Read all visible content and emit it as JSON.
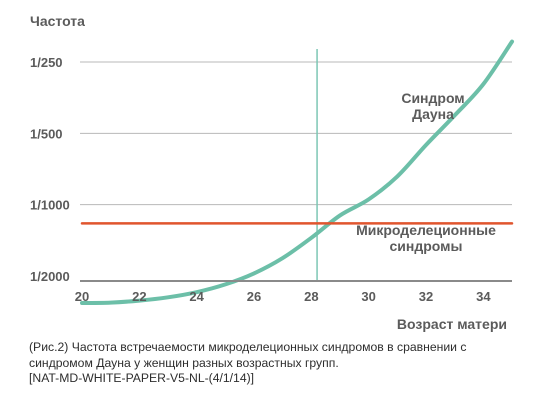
{
  "chart_data": {
    "type": "line",
    "ylabel": "Частота",
    "xlabel": "Возраст матери",
    "x_ticks": [
      "20",
      "22",
      "24",
      "26",
      "28",
      "30",
      "32",
      "34"
    ],
    "y_ticks": [
      "1/250",
      "1/500",
      "1/1000",
      "1/2000"
    ],
    "xlim": [
      20,
      35
    ],
    "grid": true,
    "marker_x": 28.2,
    "series": [
      {
        "name": "Синдром Дауна",
        "color": "#6cbfa8",
        "x": [
          20,
          21,
          22,
          23,
          24,
          25,
          26,
          27,
          28,
          29,
          30,
          31,
          32,
          33,
          34,
          35
        ],
        "y_label_scale": [
          2600,
          2590,
          2540,
          2460,
          2340,
          2170,
          1950,
          1680,
          1380,
          1110,
          950,
          760,
          560,
          420,
          310,
          205
        ]
      },
      {
        "name": "Микроделеционные синдромы",
        "color": "#e0552e",
        "x": [
          20,
          35
        ],
        "y_label_scale": [
          1200,
          1200
        ]
      }
    ]
  },
  "labels": {
    "down_line1": "Синдром",
    "down_line2": "Дауна",
    "micro_line1": "Микроделеционные",
    "micro_line2": "синдромы"
  },
  "caption": {
    "line1": "(Рис.2) Частота встречаемости микроделеционных синдромов в сравнении с",
    "line2": "синдромом Дауна у женщин разных возрастных групп.",
    "line3": "[NAT-MD-WHITE-PAPER-V5-NL-(4/1/14)]"
  }
}
